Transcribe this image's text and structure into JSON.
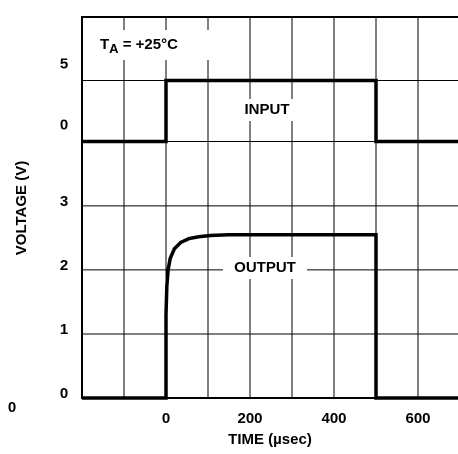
{
  "chart_data": {
    "type": "line",
    "xlabel": "TIME (µsec)",
    "ylabel": "VOLTAGE (V)",
    "condition": {
      "symbol": "T",
      "subscript": "A",
      "text": " = +25°C"
    },
    "stray_label": "0",
    "xlim": [
      -200,
      700
    ],
    "xticks": [
      0,
      200,
      400,
      600
    ],
    "xgrid": [
      -200,
      -100,
      0,
      100,
      200,
      300,
      400,
      500,
      600,
      700
    ],
    "ylim": [
      0,
      5.95
    ],
    "yticks": [
      0,
      1,
      2,
      3
    ],
    "y2lim": [
      -21,
      10.2
    ],
    "y2ticks": [
      0,
      5
    ],
    "grid": true,
    "series": [
      {
        "name": "INPUT",
        "color": "#000000",
        "axis": "y2",
        "x": [
          -200,
          0,
          0,
          500,
          500,
          700
        ],
        "values": [
          0,
          0,
          5,
          5,
          0,
          0
        ]
      },
      {
        "name": "OUTPUT",
        "color": "#000000",
        "x": [
          -200,
          0,
          0,
          2,
          5,
          10,
          20,
          35,
          55,
          80,
          110,
          150,
          500,
          500,
          700
        ],
        "values": [
          0,
          0,
          1.3,
          1.75,
          2.0,
          2.18,
          2.33,
          2.43,
          2.49,
          2.52,
          2.54,
          2.55,
          2.55,
          0,
          0
        ]
      }
    ]
  }
}
